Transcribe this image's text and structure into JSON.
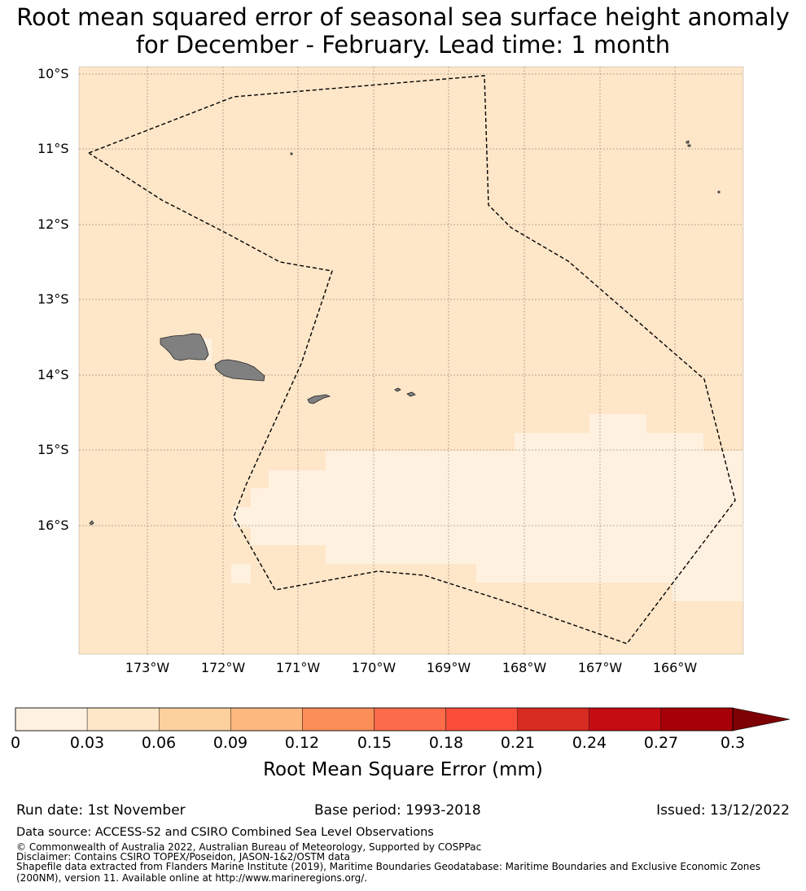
{
  "title": {
    "line1": "Root mean squared error of seasonal sea surface height anomaly",
    "line2": "for December - February. Lead time: 1 month"
  },
  "map": {
    "latitude_labels": [
      "10°S",
      "11°S",
      "12°S",
      "13°S",
      "14°S",
      "15°S",
      "16°S"
    ],
    "longitude_labels": [
      "173°W",
      "172°W",
      "171°W",
      "170°W",
      "169°W",
      "168°W",
      "167°W",
      "166°W"
    ],
    "colors": {
      "ocean_base": "#fee6c8",
      "ocean_low": "#fff1e0",
      "land": "#808080",
      "boundary": "#000000"
    }
  },
  "colorbar": {
    "label": "Root Mean Square Error (mm)",
    "ticks": [
      "0",
      "0.03",
      "0.06",
      "0.09",
      "0.12",
      "0.15",
      "0.18",
      "0.21",
      "0.24",
      "0.27",
      "0.3"
    ],
    "colors": [
      "#fff1e0",
      "#fee6c8",
      "#fdd19e",
      "#fdb87f",
      "#fc8e59",
      "#fc6b4a",
      "#fb4e3a",
      "#d72a20",
      "#c50c13",
      "#a70009",
      "#7c0004"
    ]
  },
  "footer": {
    "run_date": "Run date: 1st November",
    "base_period": "Base period: 1993-2018",
    "issued": "Issued: 13/12/2022",
    "data_source": "Data source: ACCESS-S2 and CSIRO Combined Sea Level Observations",
    "copyright": "© Commonwealth of Australia 2022, Australian Bureau of Meteorology, Supported by COSPPac",
    "disclaimer": "Disclaimer: Contains CSIRO TOPEX/Poseidon, JASON-1&2/OSTM data",
    "shapefile_line1": "Shapefile data extracted from Flanders Marine Institute (2019), Maritime Boundaries Geodatabase: Maritime Boundaries and Exclusive Economic Zones",
    "shapefile_line2": "(200NM), version 11. Available online at http://www.marineregions.org/."
  }
}
